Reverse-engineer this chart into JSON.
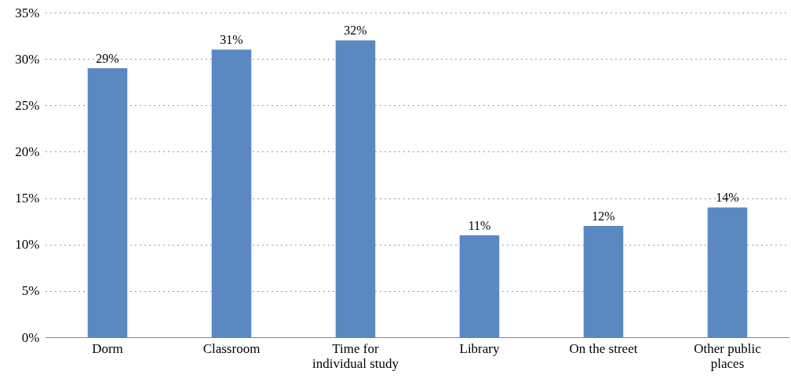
{
  "chart_data": {
    "type": "bar",
    "categories": [
      "Dorm",
      "Classroom",
      "Time for individual study",
      "Library",
      "On the street",
      "Other public places"
    ],
    "values": [
      29,
      31,
      32,
      11,
      12,
      14
    ],
    "value_labels": [
      "29%",
      "31%",
      "32%",
      "11%",
      "12%",
      "14%"
    ],
    "color": "#5a88c1",
    "ylim": [
      0,
      35
    ],
    "yticks": [
      {
        "value": 0,
        "label": "0%"
      },
      {
        "value": 5,
        "label": "5%"
      },
      {
        "value": 10,
        "label": "10%"
      },
      {
        "value": 15,
        "label": "15%"
      },
      {
        "value": 20,
        "label": "20%"
      },
      {
        "value": 25,
        "label": "25%"
      },
      {
        "value": 30,
        "label": "30%"
      },
      {
        "value": 35,
        "label": "35%"
      }
    ],
    "grid": "y"
  }
}
